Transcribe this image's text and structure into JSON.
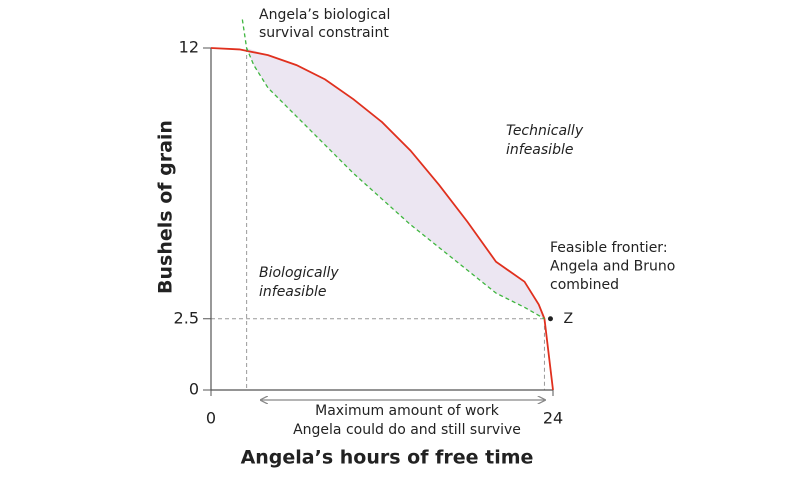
{
  "chart_data": {
    "type": "line",
    "x_label": "Angela’s hours of free time",
    "y_label": "Bushels of grain",
    "xlim": [
      0,
      24
    ],
    "ylim": [
      0,
      12
    ],
    "xticks": [
      0,
      24
    ],
    "yticks": [
      0,
      2.5,
      12
    ],
    "series": [
      {
        "color": "#e0301e",
        "dashed": false,
        "x": [
          0,
          2,
          4,
          6,
          8,
          10,
          12,
          14,
          16,
          18,
          20,
          22,
          23,
          23.4,
          24
        ],
        "values": [
          12,
          11.95,
          11.75,
          11.4,
          10.9,
          10.2,
          9.4,
          8.4,
          7.2,
          5.9,
          4.5,
          3.8,
          3.0,
          2.5,
          0
        ]
      },
      {
        "color": "#3fb63f",
        "dashed": true,
        "x": [
          2.2,
          2.5,
          3,
          4,
          6,
          8,
          10,
          12,
          14,
          16,
          18,
          20,
          22,
          23.4
        ],
        "values": [
          13,
          12,
          11.4,
          10.6,
          9.6,
          8.6,
          7.6,
          6.7,
          5.8,
          5.0,
          4.2,
          3.4,
          2.9,
          2.5
        ]
      }
    ],
    "region_color": "#ece6f2",
    "point": {
      "label": "Z",
      "x": 23.4,
      "y": 2.5
    },
    "annotations": [
      {
        "lines": [
          "Angela’s biological",
          "survival constraint"
        ],
        "italic": false
      },
      {
        "lines": [
          "Technically",
          "infeasible"
        ],
        "italic": true
      },
      {
        "lines": [
          "Feasible frontier:",
          "Angela and Bruno",
          "combined"
        ],
        "italic": false
      },
      {
        "lines": [
          "Biologically",
          "infeasible"
        ],
        "italic": true
      },
      {
        "lines": [
          "Maximum amount of work",
          "Angela could do and still survive"
        ],
        "italic": false
      }
    ]
  }
}
